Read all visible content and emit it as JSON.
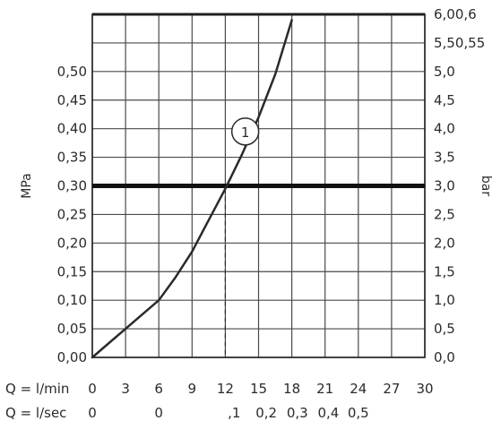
{
  "chart_data": {
    "type": "line",
    "x_ticks": [
      "0",
      "3",
      "6",
      "9",
      "12",
      "15",
      "18",
      "21",
      "24",
      "27",
      "30"
    ],
    "xlim": [
      0,
      30
    ],
    "ylim_mpa": [
      0,
      0.6
    ],
    "left_ticks": [
      "0,00",
      "0,05",
      "0,10",
      "0,15",
      "0,20",
      "0,25",
      "0,30",
      "0,35",
      "0,40",
      "0,45",
      "0,50"
    ],
    "right_ticks": [
      "0,0",
      "0,5",
      "1,0",
      "1,5",
      "2,0",
      "2,5",
      "3,0",
      "3,5",
      "4,0",
      "4,5",
      "5,0",
      "5,50,55",
      "6,00,6"
    ],
    "left_label": "MPa",
    "right_label": "bar",
    "x_row1_label": "Q = l/min",
    "x_row2_label": "Q = l/sec",
    "x_row2_ticks": [
      "0",
      "0",
      ",1",
      "0,2",
      "0,3",
      "0,4",
      "0,5"
    ],
    "series": [
      {
        "label": "1",
        "x": [
          0,
          1.5,
          3,
          4.5,
          6,
          7.5,
          9,
          10.5,
          12,
          13.5,
          15,
          16.5,
          18
        ],
        "y": [
          0,
          0.025,
          0.05,
          0.075,
          0.1,
          0.14,
          0.185,
          0.24,
          0.295,
          0.355,
          0.42,
          0.495,
          0.59
        ]
      }
    ],
    "reference_line": {
      "y_mpa": 0.3,
      "x_drop": 12
    },
    "grid": true
  },
  "colors": {
    "grid": "#4a4a4a",
    "axis": "#1f1f1f",
    "curve": "#2a2a2a",
    "refLine": "#111111"
  }
}
